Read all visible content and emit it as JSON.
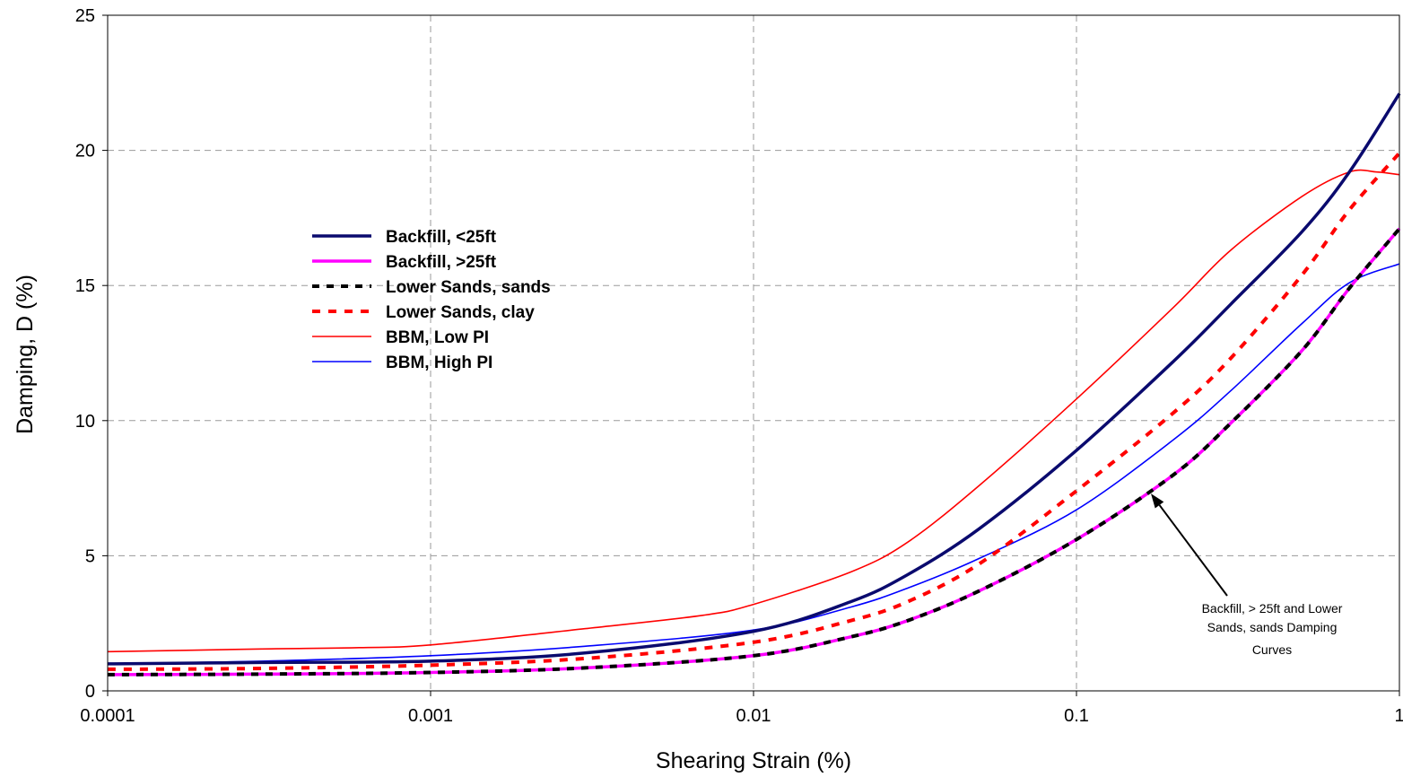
{
  "chart_data": {
    "type": "line",
    "xlabel": "Shearing Strain (%)",
    "ylabel": "Damping, D (%)",
    "x_scale": "log",
    "xlim": [
      0.0001,
      1
    ],
    "ylim": [
      0,
      25
    ],
    "x_ticks": [
      0.0001,
      0.001,
      0.01,
      0.1,
      1
    ],
    "x_tick_labels": [
      "0.0001",
      "0.001",
      "0.01",
      "0.1",
      "1"
    ],
    "y_ticks": [
      0,
      5,
      10,
      15,
      20,
      25
    ],
    "y_tick_labels": [
      "0",
      "5",
      "10",
      "15",
      "20",
      "25"
    ],
    "grid": true,
    "legend_position": "center-left",
    "series": [
      {
        "name": "Backfill, <25ft",
        "color": "#0a0a6e",
        "style": "solid-thick",
        "x": [
          0.0001,
          0.0003,
          0.001,
          0.003,
          0.01,
          0.02,
          0.03,
          0.05,
          0.1,
          0.2,
          0.3,
          0.5,
          0.7,
          1
        ],
        "y": [
          1.0,
          1.05,
          1.1,
          1.4,
          2.2,
          3.3,
          4.3,
          6.0,
          8.9,
          12.2,
          14.3,
          17.0,
          19.2,
          22.1
        ]
      },
      {
        "name": "Backfill, >25ft",
        "color": "#ff00ff",
        "style": "solid-thick",
        "x": [
          0.0001,
          0.0003,
          0.001,
          0.003,
          0.01,
          0.02,
          0.03,
          0.05,
          0.1,
          0.2,
          0.3,
          0.5,
          0.7,
          1
        ],
        "y": [
          0.6,
          0.62,
          0.68,
          0.85,
          1.3,
          2.0,
          2.6,
          3.7,
          5.6,
          8.0,
          9.9,
          12.6,
          14.9,
          17.1
        ]
      },
      {
        "name": "Lower Sands, sands",
        "color": "#000000",
        "style": "dashed-black",
        "x": [
          0.0001,
          0.0003,
          0.001,
          0.003,
          0.01,
          0.02,
          0.03,
          0.05,
          0.1,
          0.2,
          0.3,
          0.5,
          0.7,
          1
        ],
        "y": [
          0.6,
          0.62,
          0.68,
          0.85,
          1.3,
          2.0,
          2.6,
          3.7,
          5.6,
          8.0,
          9.9,
          12.6,
          14.9,
          17.1
        ]
      },
      {
        "name": "Lower Sands, clay",
        "color": "#ff0000",
        "style": "dashed-red",
        "x": [
          0.0001,
          0.0003,
          0.001,
          0.003,
          0.01,
          0.02,
          0.03,
          0.05,
          0.1,
          0.2,
          0.3,
          0.5,
          0.7,
          1
        ],
        "y": [
          0.8,
          0.83,
          0.95,
          1.2,
          1.8,
          2.6,
          3.3,
          4.7,
          7.4,
          10.3,
          12.3,
          15.4,
          17.8,
          19.9
        ]
      },
      {
        "name": "BBM, Low PI",
        "color": "#ff0000",
        "style": "solid-thin",
        "x": [
          0.0001,
          0.0003,
          0.0006,
          0.001,
          0.003,
          0.007,
          0.01,
          0.02,
          0.03,
          0.05,
          0.1,
          0.2,
          0.3,
          0.5,
          0.7,
          0.85,
          1
        ],
        "y": [
          1.45,
          1.55,
          1.6,
          1.7,
          2.3,
          2.8,
          3.2,
          4.4,
          5.5,
          7.6,
          10.8,
          14.2,
          16.3,
          18.3,
          19.2,
          19.2,
          19.1
        ]
      },
      {
        "name": "BBM, High PI",
        "color": "#0000ff",
        "style": "solid-thin",
        "x": [
          0.0001,
          0.0003,
          0.001,
          0.003,
          0.01,
          0.02,
          0.03,
          0.05,
          0.1,
          0.2,
          0.3,
          0.5,
          0.7,
          1
        ],
        "y": [
          1.0,
          1.1,
          1.3,
          1.65,
          2.25,
          3.1,
          3.8,
          4.9,
          6.7,
          9.3,
          11.1,
          13.6,
          15.1,
          15.8
        ]
      }
    ],
    "annotation": {
      "lines": [
        "Backfill, > 25ft and Lower",
        "Sands, sands Damping",
        "Curves"
      ],
      "arrow_to": {
        "x": 0.17,
        "y": 7.3
      }
    }
  }
}
